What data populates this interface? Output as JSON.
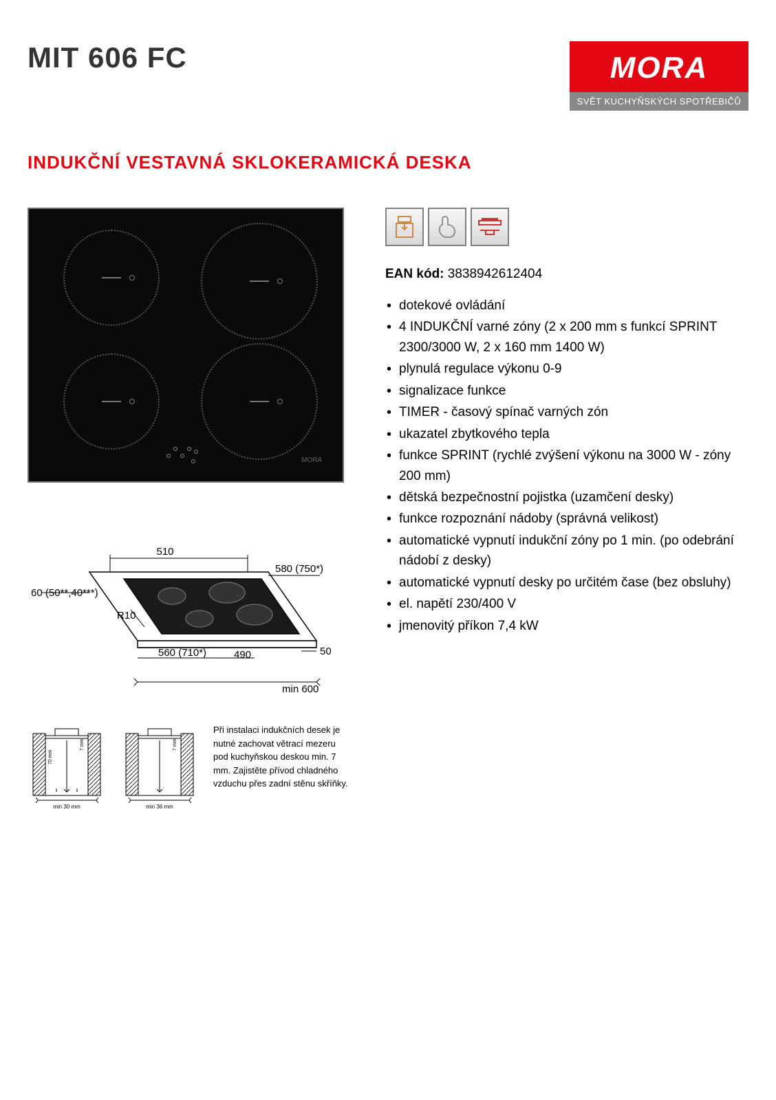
{
  "header": {
    "product_code": "MIT 606 FC",
    "logo_brand": "MORA",
    "logo_tagline": "SVĚT KUCHYŇSKÝCH SPOTŘEBIČŮ",
    "logo_bg": "#e30613",
    "logo_tag_bg": "#888888"
  },
  "subtitle": "INDUKČNÍ VESTAVNÁ SKLOKERAMICKÁ DESKA",
  "subtitle_color": "#e30613",
  "ean": {
    "label": "EAN kód:",
    "value": "3838942612404"
  },
  "features": [
    "dotekové ovládání",
    "4 INDUKČNÍ varné zóny (2 x 200 mm s funkcí SPRINT 2300/3000 W, 2 x 160 mm 1400 W)",
    "plynulá regulace výkonu 0-9",
    "signalizace funkce",
    "TIMER - časový spínač varných zón",
    "ukazatel zbytkového tepla",
    "funkce SPRINT (rychlé zvýšení výkonu na 3000 W - zóny 200 mm)",
    "dětská bezpečnostní pojistka (uzamčení desky)",
    "funkce rozpoznání nádoby (správná velikost)",
    "automatické vypnutí indukční zóny po 1 min. (po odebrání nádobí z desky)",
    "automatické vypnutí desky po určitém čase (bez obsluhy)",
    "el. napětí 230/400 V",
    "jmenovitý příkon 7,4 kW"
  ],
  "dimensions": {
    "top_width": "510",
    "left_depth": "60 (50**,40***)",
    "right_width": "580 (750*)",
    "radius": "R10",
    "inner_width": "560 (710*)",
    "inner_depth": "490",
    "right_gap": "50",
    "min_cabinet": "min 600"
  },
  "install": {
    "diag1_label": "min 30 mm",
    "diag1_gap": "7 mm",
    "diag1_h": "70 mm",
    "diag2_label": "min 36 mm",
    "diag2_gap": "7 mm",
    "text": "Při instalaci indukčních desek je nutné zachovat větrací mezeru pod kuchyňskou deskou min. 7 mm. Zajistěte přívod chladného vzduchu přes zadní stěnu skříňky."
  },
  "icons": [
    {
      "name": "built-in-icon",
      "color": "#cc8844"
    },
    {
      "name": "touch-control-icon",
      "color": "#888888"
    },
    {
      "name": "cooktop-icon",
      "color": "#cc3333"
    }
  ],
  "product_image": {
    "background": "#0a0a0a",
    "border": "#707070",
    "zone_border": "#555555",
    "brand_mark": "MORA"
  }
}
